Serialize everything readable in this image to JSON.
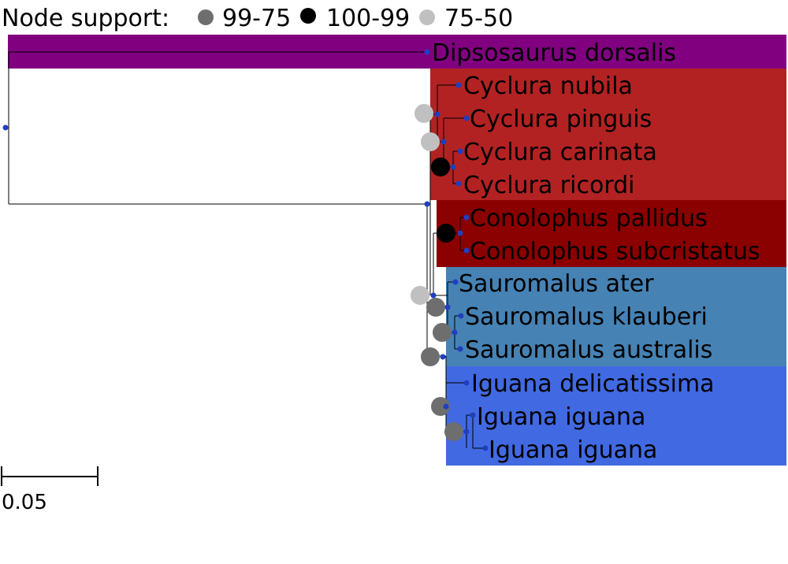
{
  "legend": {
    "title": "Node support:",
    "entries": [
      {
        "label": "99-75",
        "color": "#6e6e6e"
      },
      {
        "label": "100-99",
        "color": "#000000"
      },
      {
        "label": "75-50",
        "color": "#c0c0c0"
      }
    ]
  },
  "clades": [
    {
      "name": "dipsosaurus",
      "color": "#800080"
    },
    {
      "name": "cyclura",
      "color": "#b22222"
    },
    {
      "name": "conolophus",
      "color": "#8b0000"
    },
    {
      "name": "sauromalus",
      "color": "#4682b4"
    },
    {
      "name": "iguana",
      "color": "#4169e1"
    }
  ],
  "taxa": [
    "Dipsosaurus dorsalis",
    "Cyclura nubila",
    "Cyclura pinguis",
    "Cyclura carinata",
    "Cyclura ricordi",
    "Conolophus pallidus",
    "Conolophus subcristatus",
    "Sauromalus ater",
    "Sauromalus klauberi",
    "Sauromalus australis",
    "Iguana delicatissima",
    "Iguana iguana",
    "Iguana iguana"
  ],
  "node_support": [
    "75-50",
    "75-50",
    "100-99",
    "100-99",
    "75-50",
    "99-75",
    "99-75",
    "99-75",
    "99-75",
    "99-75"
  ],
  "scale": {
    "label": "0.05"
  },
  "colors": {
    "tip_dot": "#1f3fbf",
    "branch": "#000000"
  }
}
